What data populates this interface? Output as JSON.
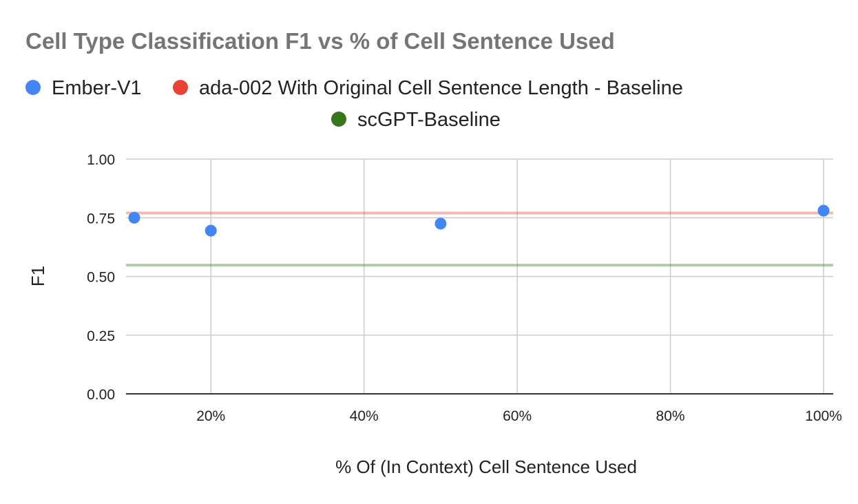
{
  "chart_data": {
    "type": "scatter",
    "title": "Cell Type Classification F1 vs % of Cell Sentence Used",
    "xlabel": "% Of (In Context) Cell Sentence Used",
    "ylabel": "F1",
    "xlim": [
      0.1,
      1.0
    ],
    "ylim": [
      0,
      1
    ],
    "x_ticks": [
      {
        "value": 0.2,
        "label": "20%"
      },
      {
        "value": 0.4,
        "label": "40%"
      },
      {
        "value": 0.6,
        "label": "60%"
      },
      {
        "value": 0.8,
        "label": "80%"
      },
      {
        "value": 1.0,
        "label": "100%"
      }
    ],
    "y_ticks": [
      {
        "value": 0,
        "label": "0.00"
      },
      {
        "value": 0.25,
        "label": "0.25"
      },
      {
        "value": 0.5,
        "label": "0.50"
      },
      {
        "value": 0.75,
        "label": "0.75"
      },
      {
        "value": 1.0,
        "label": "1.00"
      }
    ],
    "grid": true,
    "legend_position": "top",
    "series": [
      {
        "name": "Ember-V1",
        "kind": "points",
        "color": "#4285F4",
        "points": [
          {
            "x": 0.1,
            "y": 0.75
          },
          {
            "x": 0.2,
            "y": 0.695
          },
          {
            "x": 0.5,
            "y": 0.725
          },
          {
            "x": 1.0,
            "y": 0.78
          }
        ]
      },
      {
        "name": "ada-002 With Original Cell Sentence Length - Baseline",
        "kind": "hline",
        "color": "#EA4335",
        "y": 0.77
      },
      {
        "name": "scGPT-Baseline",
        "kind": "hline",
        "color": "#38761D",
        "y": 0.548
      }
    ]
  }
}
